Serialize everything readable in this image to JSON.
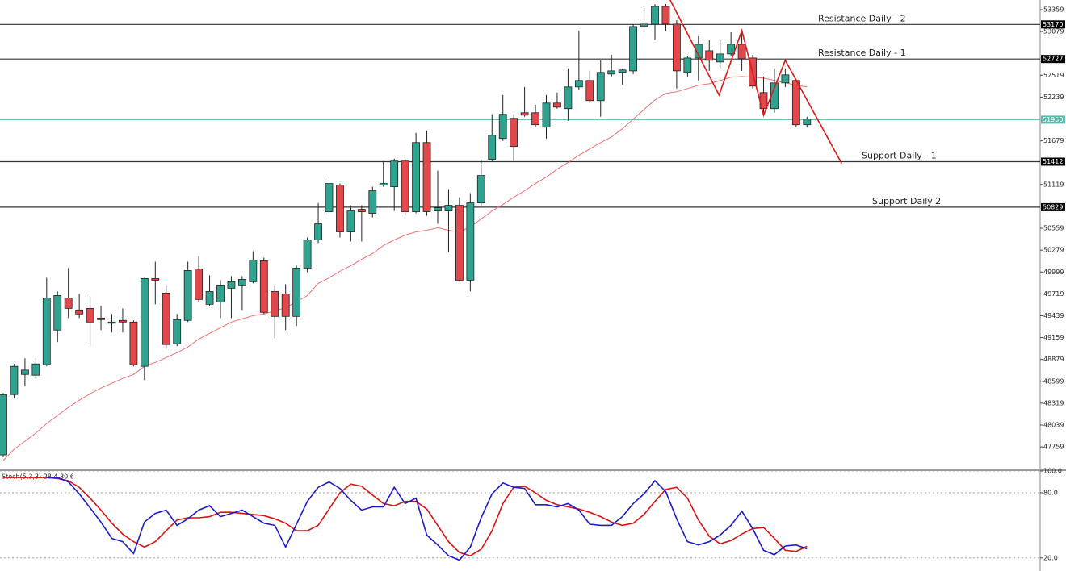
{
  "chart_data": [
    {
      "type": "candlestick",
      "ylim": [
        47481,
        53483
      ],
      "yticks": [
        53359,
        53079,
        52519,
        52239,
        51679,
        51119,
        50559,
        50279,
        49999,
        49719,
        49439,
        49159,
        48879,
        48599,
        48319,
        48039,
        47759
      ],
      "up_color": "#2fa38f",
      "down_color": "#e2474b",
      "outline_color": "#222222",
      "open": [
        47656,
        48429,
        48687,
        48677,
        48812,
        49255,
        49667,
        49513,
        49533,
        49409,
        49358,
        49379,
        49358,
        48791,
        49915,
        49729,
        49080,
        49379,
        50039,
        49585,
        49616,
        49791,
        49822,
        49874,
        50142,
        49750,
        49719,
        49430,
        50049,
        50410,
        50771,
        51111,
        50513,
        50802,
        50750,
        51111,
        51091,
        51420,
        50771,
        51657,
        50781,
        50781,
        50853,
        49894,
        50884,
        51441,
        51709,
        51967,
        52039,
        52039,
        51854,
        52163,
        52091,
        52369,
        52452,
        52194,
        52534,
        52555,
        52575,
        53143,
        53174,
        53401,
        53174,
        52555,
        52740,
        52833,
        52689,
        52792,
        52916,
        52740,
        52297,
        52091,
        52421,
        52452,
        51885
      ],
      "high": [
        48450,
        48822,
        48894,
        48894,
        49925,
        49750,
        50049,
        49719,
        49688,
        49564,
        49461,
        49533,
        49379,
        49925,
        50131,
        49822,
        49461,
        50131,
        50203,
        49956,
        49894,
        49946,
        49946,
        50265,
        50183,
        49822,
        49843,
        50080,
        50441,
        50884,
        51214,
        51132,
        50853,
        50853,
        51091,
        51420,
        51451,
        51451,
        51781,
        51812,
        51297,
        51060,
        50956,
        51008,
        51441,
        52019,
        52266,
        52019,
        52369,
        52142,
        52266,
        52297,
        52606,
        53091,
        52575,
        52710,
        52782,
        52606,
        53174,
        53380,
        53431,
        53431,
        53225,
        52761,
        53019,
        52967,
        52967,
        53070,
        53091,
        52782,
        52503,
        52606,
        52606,
        52472,
        51988
      ],
      "low": [
        47625,
        48378,
        48533,
        48636,
        48791,
        49101,
        49409,
        49409,
        49049,
        49255,
        49224,
        49224,
        48791,
        48615,
        49585,
        49018,
        49049,
        49358,
        49616,
        49564,
        49409,
        49409,
        49513,
        49853,
        49461,
        49152,
        49255,
        49307,
        49997,
        50368,
        50750,
        50441,
        50389,
        50389,
        50699,
        51091,
        50781,
        50719,
        50750,
        50719,
        50616,
        50255,
        49874,
        49750,
        50853,
        51420,
        51678,
        51420,
        51988,
        51854,
        51709,
        52091,
        51936,
        52328,
        52163,
        51988,
        52503,
        52400,
        52534,
        53122,
        52967,
        53091,
        52349,
        52503,
        52452,
        52575,
        52606,
        52761,
        52575,
        52349,
        52039,
        52039,
        52369,
        51854,
        51854
      ],
      "close": [
        48429,
        48791,
        48743,
        48822,
        49667,
        49698,
        49533,
        49461,
        49358,
        49389,
        49358,
        49358,
        48812,
        49915,
        49894,
        49070,
        49389,
        50018,
        49647,
        49750,
        49822,
        49874,
        49904,
        50152,
        49482,
        49430,
        49430,
        50049,
        50410,
        50616,
        51132,
        50513,
        50781,
        50771,
        51039,
        51132,
        51420,
        50771,
        51657,
        50771,
        50822,
        50853,
        49894,
        50884,
        51235,
        51750,
        52019,
        51606,
        52008,
        51885,
        52163,
        52111,
        52369,
        52452,
        52194,
        52555,
        52575,
        52586,
        53143,
        53174,
        53401,
        53174,
        52575,
        52740,
        52916,
        52710,
        52792,
        52916,
        52730,
        52380,
        52091,
        52421,
        52524,
        51885,
        51957
      ],
      "ma": {
        "color": "#f07070",
        "values": [
          47584,
          47728,
          47832,
          47935,
          48058,
          48162,
          48265,
          48357,
          48440,
          48512,
          48574,
          48636,
          48687,
          48791,
          48842,
          48904,
          48966,
          49038,
          49141,
          49213,
          49286,
          49358,
          49399,
          49440,
          49461,
          49502,
          49543,
          49616,
          49698,
          49853,
          49925,
          50008,
          50080,
          50162,
          50234,
          50338,
          50410,
          50472,
          50513,
          50534,
          50565,
          50534,
          50513,
          50575,
          50678,
          50781,
          50863,
          50956,
          51039,
          51132,
          51214,
          51317,
          51400,
          51493,
          51575,
          51657,
          51729,
          51833,
          51957,
          52080,
          52204,
          52287,
          52307,
          52349,
          52390,
          52410,
          52452,
          52493,
          52503,
          52493,
          52483,
          52452,
          52421,
          52390,
          52369
        ]
      },
      "trendline": {
        "color": "#e01818",
        "x": [
          61.4,
          65.9,
          68.0,
          70.0,
          72.0,
          77.2
        ],
        "values": [
          53483,
          52266,
          53091,
          52008,
          52710,
          51389
        ]
      },
      "levels": [
        {
          "label": "Resistance Daily - 2",
          "value": 53170
        },
        {
          "label": "Resistance Daily - 1",
          "value": 52727
        },
        {
          "label": "Support Daily - 1",
          "value": 51412
        },
        {
          "label": "Support Daily 2",
          "value": 50829
        }
      ],
      "level_color": "#333333",
      "current_price": 51950,
      "current_color": "#5cb8a8"
    },
    {
      "type": "line",
      "title": "Stoch(5,3,3) 28.4 30.6",
      "ylim": [
        8,
        100
      ],
      "yticks": [
        {
          "value": 100,
          "label": "100.0"
        },
        {
          "value": 80,
          "label": "80.0"
        },
        {
          "value": 20,
          "label": "20.0"
        }
      ],
      "series": [
        {
          "name": "%K",
          "color": "#1a1acc",
          "values": [
            null,
            null,
            null,
            null,
            94,
            94,
            90,
            79,
            66,
            53,
            38,
            35,
            24,
            53,
            61,
            64,
            50,
            56,
            64,
            68,
            58,
            61,
            64,
            58,
            52,
            50,
            30,
            51,
            72,
            85,
            90,
            84,
            73,
            64,
            67,
            67,
            85,
            70,
            75,
            41,
            32,
            22,
            18,
            30,
            57,
            79,
            89,
            85,
            84,
            69,
            69,
            67,
            70,
            64,
            51,
            50,
            50,
            58,
            70,
            79,
            91,
            81,
            56,
            35,
            32,
            35,
            41,
            50,
            63,
            47,
            27,
            23,
            31,
            32,
            28.4
          ]
        },
        {
          "name": "%D",
          "color": "#dd1111",
          "values": [
            94,
            94,
            94,
            94,
            94,
            93,
            91,
            85,
            75,
            64,
            52,
            42,
            35,
            30,
            35,
            45,
            55,
            57,
            57,
            58,
            62,
            62,
            61,
            60,
            59,
            56,
            52,
            45,
            45,
            50,
            65,
            80,
            88,
            86,
            78,
            70,
            68,
            72,
            72,
            65,
            50,
            35,
            25,
            22,
            28,
            45,
            70,
            85,
            86,
            80,
            73,
            69,
            67,
            65,
            62,
            58,
            53,
            50,
            52,
            60,
            72,
            83,
            85,
            75,
            55,
            40,
            33,
            36,
            42,
            47,
            48,
            38,
            27,
            26,
            30.6
          ]
        }
      ]
    }
  ]
}
